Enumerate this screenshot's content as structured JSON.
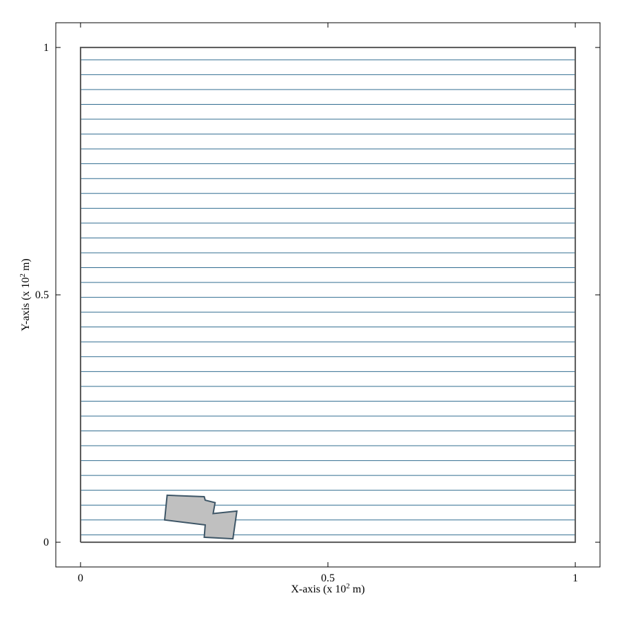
{
  "chart_data": {
    "type": "line",
    "title": "",
    "xlabel": "X-axis (x 10",
    "xlabel_sup": "2",
    "xlabel_suffix": " m)",
    "ylabel": "Y-axis (x 10",
    "ylabel_sup": "2",
    "ylabel_suffix": " m)",
    "xlim": [
      -0.05,
      1.05
    ],
    "ylim": [
      -0.05,
      1.05
    ],
    "xticks": [
      0,
      0.5,
      1
    ],
    "yticks": [
      0,
      0.5,
      1
    ],
    "xtick_labels": [
      "0",
      "0.5",
      "1"
    ],
    "ytick_labels": [
      "0",
      "0.5",
      "1"
    ],
    "grid": false,
    "domain_box": {
      "x": [
        0,
        1,
        1,
        0,
        0
      ],
      "y": [
        0,
        0,
        1,
        1,
        0
      ]
    },
    "horizontal_lines_y": [
      0.015,
      0.045,
      0.075,
      0.105,
      0.135,
      0.165,
      0.195,
      0.225,
      0.255,
      0.285,
      0.315,
      0.345,
      0.375,
      0.405,
      0.435,
      0.465,
      0.495,
      0.525,
      0.555,
      0.585,
      0.615,
      0.645,
      0.675,
      0.705,
      0.735,
      0.765,
      0.795,
      0.825,
      0.855,
      0.885,
      0.915,
      0.945,
      0.975
    ],
    "horizontal_lines_x": [
      0,
      1
    ],
    "obstacle_polygon": {
      "x": [
        0.175,
        0.25,
        0.252,
        0.272,
        0.268,
        0.316,
        0.308,
        0.25,
        0.252,
        0.17,
        0.175
      ],
      "y": [
        0.095,
        0.092,
        0.085,
        0.08,
        0.058,
        0.063,
        0.007,
        0.01,
        0.035,
        0.045,
        0.095
      ]
    },
    "colors": {
      "lines": "#2f6b8f",
      "box": "#555555",
      "obstacle_fill": "#c0c0c0",
      "obstacle_stroke": "#3d5566"
    }
  }
}
